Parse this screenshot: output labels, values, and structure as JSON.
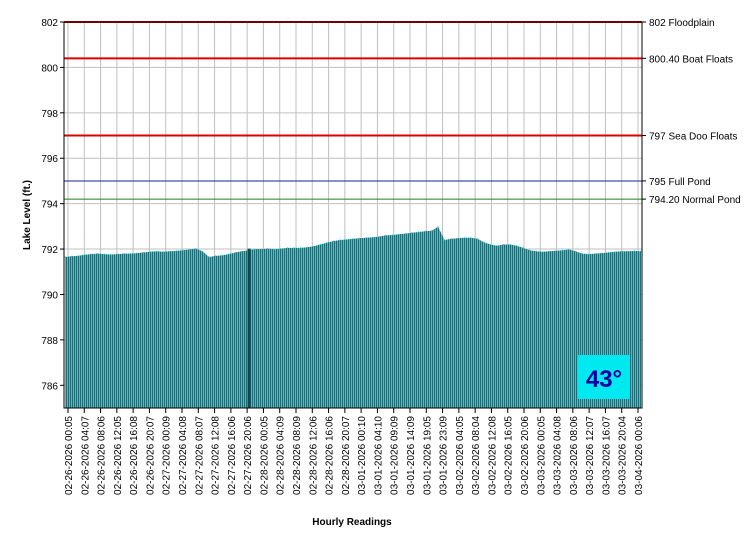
{
  "chart_data": {
    "type": "area",
    "xlabel": "Hourly Readings",
    "ylabel": "Lake Level (ft.)",
    "ylim": [
      785,
      802
    ],
    "yticks": [
      786,
      788,
      790,
      792,
      794,
      796,
      798,
      800,
      802
    ],
    "grid": true,
    "badge": {
      "text": "43°",
      "color": "#0000a0",
      "background": "#00e8f0"
    },
    "colors": {
      "fill": "#00dde8",
      "stipple": "#1e6e78",
      "spike": "#104850"
    },
    "reference_lines": [
      {
        "value": 802.0,
        "label": "802 Floodplain",
        "color": "#dd0000"
      },
      {
        "value": 800.4,
        "label": "800.40 Boat Floats",
        "color": "#dd0000"
      },
      {
        "value": 797.0,
        "label": "797 Sea Doo Floats",
        "color": "#dd0000"
      },
      {
        "value": 795.0,
        "label": "795 Full Pond",
        "color": "#1020a0"
      },
      {
        "value": 794.2,
        "label": "794.20 Normal Pond",
        "color": "#208020"
      }
    ],
    "x_tick_labels": [
      "02-26-2026 00:05",
      "02-26-2026 04:07",
      "02-26-2026 08:06",
      "02-26-2026 12:05",
      "02-26-2026 16:08",
      "02-26-2026 20:07",
      "02-27-2026 00:09",
      "02-27-2026 04:08",
      "02-27-2026 08:07",
      "02-27-2026 12:08",
      "02-27-2026 16:06",
      "02-27-2026 20:06",
      "02-28-2026 00:05",
      "02-28-2026 04:09",
      "02-28-2026 08:09",
      "02-28-2026 12:06",
      "02-28-2026 16:06",
      "02-28-2026 20:07",
      "03-01-2026 00:10",
      "03-01-2026 04:10",
      "03-01-2026 09:09",
      "03-01-2026 14:09",
      "03-01-2026 19:05",
      "03-01-2026 23:09",
      "03-02-2026 04:05",
      "03-02-2026 08:04",
      "03-02-2026 12:08",
      "03-02-2026 16:05",
      "03-02-2026 20:06",
      "03-03-2026 00:05",
      "03-03-2026 04:08",
      "03-03-2026 08:06",
      "03-03-2026 12:07",
      "03-03-2026 16:07",
      "03-03-2026 20:04",
      "03-04-2026 00:06"
    ],
    "series": [
      {
        "values": [
          791.65,
          791.68,
          791.7,
          791.75,
          791.78,
          791.8,
          791.78,
          791.76,
          791.78,
          791.8,
          791.8,
          791.82,
          791.85,
          791.88,
          791.9,
          791.88,
          791.9,
          791.92,
          791.95,
          791.98,
          792.02,
          791.9,
          791.65,
          791.7,
          791.72,
          791.78,
          791.85,
          791.9,
          791.95,
          792.0,
          792.0,
          792.02,
          792.0,
          792.02,
          792.05,
          792.05,
          792.05,
          792.08,
          792.12,
          792.2,
          792.28,
          792.35,
          792.4,
          792.42,
          792.45,
          792.48,
          792.5,
          792.52,
          792.55,
          792.6,
          792.62,
          792.65,
          792.68,
          792.72,
          792.75,
          792.78,
          792.8,
          792.98,
          792.4,
          792.45,
          792.48,
          792.5,
          792.5,
          792.45,
          792.3,
          792.2,
          792.15,
          792.2,
          792.2,
          792.15,
          792.05,
          791.95,
          791.9,
          791.88,
          791.9,
          791.92,
          791.95,
          791.98,
          791.9,
          791.8,
          791.78,
          791.8,
          791.82,
          791.85,
          791.88,
          791.9,
          791.9,
          791.92,
          791.9
        ]
      }
    ]
  }
}
